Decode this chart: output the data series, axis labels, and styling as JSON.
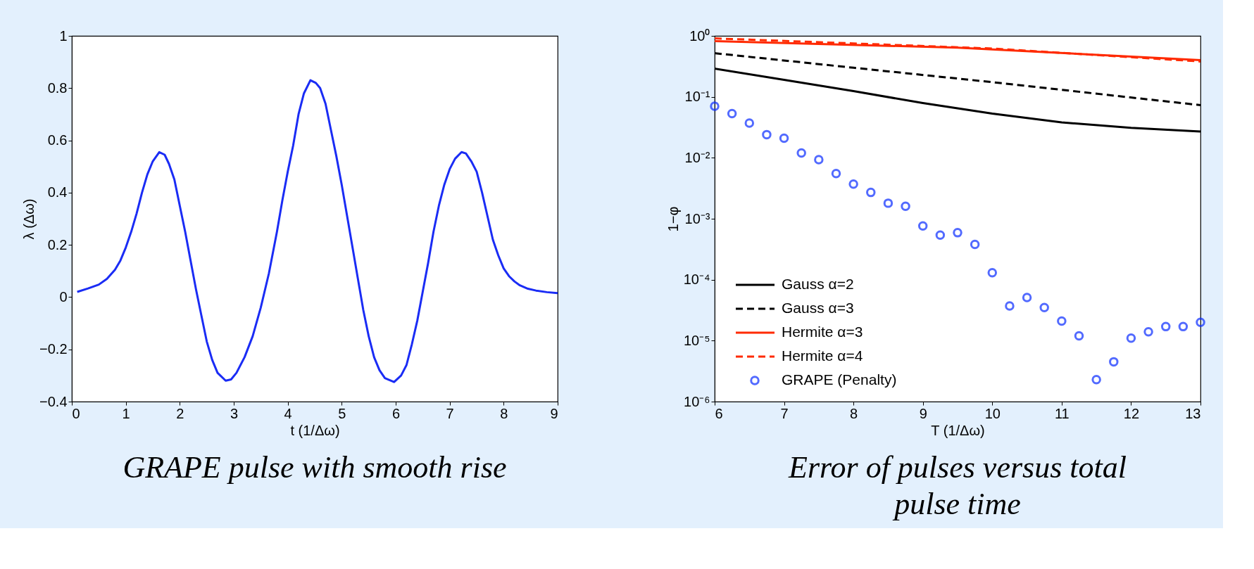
{
  "chart_data": [
    {
      "type": "line",
      "xlabel": "t (1/Δω)",
      "ylabel": "λ (Δω)",
      "xlim": [
        0,
        9
      ],
      "xticks": [
        0,
        1,
        2,
        3,
        4,
        5,
        6,
        7,
        8,
        9
      ],
      "ylim": [
        -0.4,
        1
      ],
      "yticks": [
        {
          "value": -0.4,
          "label": "−0.4"
        },
        {
          "value": -0.2,
          "label": "−0.2"
        },
        0,
        0.2,
        0.4,
        0.6,
        0.8,
        1
      ],
      "grid": false,
      "annotations": [
        "GRAPE pulse with smooth rise"
      ],
      "series": [
        {
          "color": "#1a2cf5",
          "x": [
            0.1,
            0.3,
            0.5,
            0.65,
            0.8,
            0.9,
            1.0,
            1.1,
            1.2,
            1.3,
            1.4,
            1.5,
            1.62,
            1.72,
            1.8,
            1.9,
            2.0,
            2.1,
            2.2,
            2.3,
            2.4,
            2.5,
            2.6,
            2.7,
            2.85,
            2.95,
            3.05,
            3.2,
            3.35,
            3.5,
            3.65,
            3.8,
            3.9,
            4.0,
            4.1,
            4.2,
            4.3,
            4.42,
            4.52,
            4.6,
            4.7,
            4.8,
            4.9,
            5.0,
            5.1,
            5.2,
            5.3,
            5.4,
            5.5,
            5.6,
            5.7,
            5.8,
            5.97,
            6.1,
            6.2,
            6.3,
            6.4,
            6.5,
            6.6,
            6.7,
            6.8,
            6.9,
            7.0,
            7.1,
            7.22,
            7.3,
            7.4,
            7.5,
            7.6,
            7.7,
            7.8,
            7.9,
            8.0,
            8.1,
            8.2,
            8.3,
            8.45,
            8.6,
            8.8,
            9.0
          ],
          "values": [
            0.02,
            0.033,
            0.048,
            0.07,
            0.105,
            0.14,
            0.19,
            0.25,
            0.32,
            0.4,
            0.47,
            0.52,
            0.555,
            0.545,
            0.51,
            0.45,
            0.35,
            0.25,
            0.14,
            0.03,
            -0.07,
            -0.17,
            -0.24,
            -0.29,
            -0.32,
            -0.315,
            -0.29,
            -0.23,
            -0.15,
            -0.04,
            0.09,
            0.25,
            0.37,
            0.48,
            0.58,
            0.7,
            0.78,
            0.83,
            0.82,
            0.8,
            0.74,
            0.64,
            0.54,
            0.43,
            0.31,
            0.19,
            0.07,
            -0.05,
            -0.15,
            -0.23,
            -0.28,
            -0.31,
            -0.325,
            -0.3,
            -0.26,
            -0.18,
            -0.09,
            0.02,
            0.13,
            0.25,
            0.35,
            0.43,
            0.49,
            0.53,
            0.555,
            0.55,
            0.52,
            0.48,
            0.4,
            0.31,
            0.22,
            0.16,
            0.11,
            0.08,
            0.06,
            0.045,
            0.032,
            0.025,
            0.019,
            0.015
          ]
        }
      ]
    },
    {
      "type": "line",
      "xlabel": "T (1/Δω)",
      "ylabel": "1−φ",
      "log": "y",
      "xlim": [
        6,
        13
      ],
      "xticks": [
        6,
        7,
        8,
        9,
        10,
        11,
        12,
        13
      ],
      "ylim": [
        1e-06,
        1
      ],
      "yticks": [
        {
          "value": 1e-06,
          "label": "10⁻⁶"
        },
        {
          "value": 1e-05,
          "label": "10⁻⁵"
        },
        {
          "value": 0.0001,
          "label": "10⁻⁴"
        },
        {
          "value": 0.001,
          "label": "10⁻³"
        },
        {
          "value": 0.01,
          "label": "10⁻²"
        },
        {
          "value": 0.1,
          "label": "10⁻¹"
        },
        {
          "value": 1,
          "label": "10⁰"
        }
      ],
      "grid": false,
      "legend": "bottom left",
      "annotations": [
        "Error of pulses versus total pulse time"
      ],
      "series": [
        {
          "name": "Gauss α=2",
          "color": "#000000",
          "line_style": "solid",
          "x": [
            6,
            7,
            8,
            9,
            10,
            11,
            12,
            13
          ],
          "values": [
            0.29,
            0.19,
            0.124,
            0.079,
            0.053,
            0.038,
            0.031,
            0.027
          ]
        },
        {
          "name": "Gauss α=3",
          "color": "#000000",
          "line_style": "dashed",
          "x": [
            6,
            8,
            10,
            13
          ],
          "values": [
            0.52,
            0.3,
            0.174,
            0.073
          ]
        },
        {
          "name": "Hermite α=3",
          "color": "#ff2a00",
          "line_style": "solid",
          "x": [
            6,
            9.5,
            13
          ],
          "values": [
            0.82,
            0.64,
            0.4
          ]
        },
        {
          "name": "Hermite α=4",
          "color": "#ff2a00",
          "line_style": "dashed",
          "x": [
            6,
            10,
            13
          ],
          "values": [
            0.91,
            0.62,
            0.38
          ]
        },
        {
          "name": "GRAPE (Penalty)",
          "color": "#0a2cff",
          "type": "scatter",
          "marker": "circle",
          "x": [
            6,
            6.25,
            6.5,
            6.75,
            7,
            7.25,
            7.5,
            7.75,
            8,
            8.25,
            8.5,
            8.75,
            9,
            9.25,
            9.5,
            9.75,
            10,
            10.25,
            10.5,
            10.75,
            11,
            11.25,
            11.5,
            11.75,
            12,
            12.25,
            12.5,
            12.75,
            13
          ],
          "values": [
            0.07,
            0.053,
            0.037,
            0.024,
            0.021,
            0.012,
            0.0093,
            0.0055,
            0.0037,
            0.0027,
            0.0018,
            0.0016,
            0.00076,
            0.00054,
            0.00059,
            0.00038,
            0.00013,
            3.7e-05,
            5.1e-05,
            3.5e-05,
            2.1e-05,
            1.2e-05,
            2.3e-06,
            4.5e-06,
            1.1e-05,
            1.4e-05,
            1.7e-05,
            1.7e-05,
            2e-05
          ]
        }
      ]
    }
  ]
}
